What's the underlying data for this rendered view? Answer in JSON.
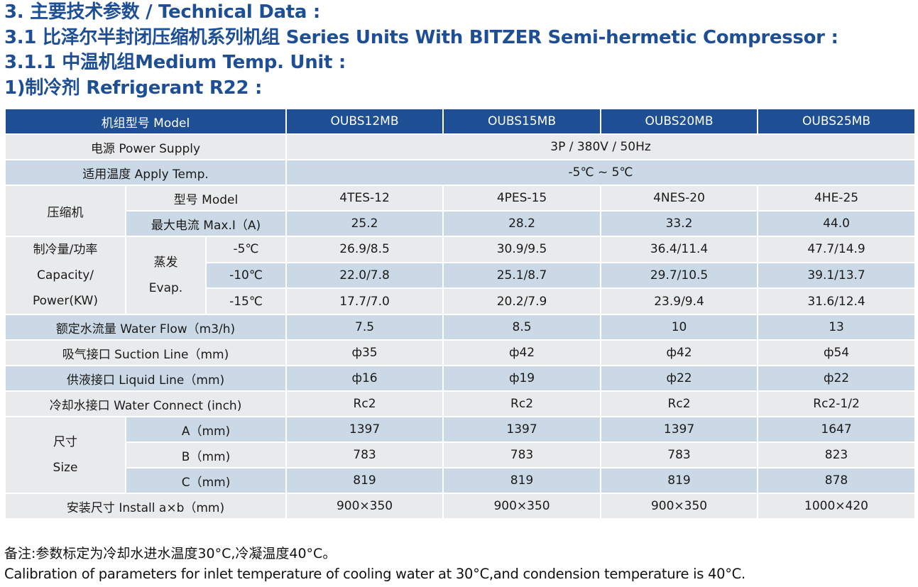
{
  "headings": [
    "3. 主要技术参数 / Technical Data :",
    "3.1 比泽尔半封闭压缩机系列机组 Series Units With BITZER Semi-hermetic Compressor :",
    "3.1.1 中温机组Medium Temp. Unit :",
    "1)制冷剂 Refrigerant  R22 :"
  ],
  "table": {
    "header": {
      "label": "机组型号 Model",
      "models": [
        "OUBS12MB",
        "OUBS15MB",
        "OUBS20MB",
        "OUBS25MB"
      ]
    },
    "power_supply": {
      "label": "电源 Power Supply",
      "value": "3P / 380V / 50Hz"
    },
    "apply_temp": {
      "label": "适用温度 Apply Temp.",
      "value": "-5℃ ~ 5℃"
    },
    "compressor": {
      "label": "压缩机",
      "model_label": "型号 Model",
      "models": [
        "4TES-12",
        "4PES-15",
        "4NES-20",
        "4HE-25"
      ],
      "current_label": "最大电流 Max.I（A)",
      "currents": [
        "25.2",
        "28.2",
        "33.2",
        "44.0"
      ]
    },
    "capacity": {
      "label_lines": [
        "制冷量/功率",
        "Capacity/",
        "Power(KW)"
      ],
      "evap_lines": [
        "蒸发",
        "Evap."
      ],
      "rows": [
        {
          "temp": "-5℃",
          "values": [
            "26.9/8.5",
            "30.9/9.5",
            "36.4/11.4",
            "47.7/14.9"
          ]
        },
        {
          "temp": "-10℃",
          "values": [
            "22.0/7.8",
            "25.1/8.7",
            "29.7/10.5",
            "39.1/13.7"
          ]
        },
        {
          "temp": "-15℃",
          "values": [
            "17.7/7.0",
            "20.2/7.9",
            "23.9/9.4",
            "31.6/12.4"
          ]
        }
      ]
    },
    "water_flow": {
      "label": "额定水流量 Water Flow（m3/h)",
      "values": [
        "7.5",
        "8.5",
        "10",
        "13"
      ]
    },
    "suction": {
      "label": "吸气接口 Suction Line（mm)",
      "values": [
        "ф35",
        "ф42",
        "ф42",
        "ф54"
      ]
    },
    "liquid": {
      "label": "供液接口 Liquid Line（mm)",
      "values": [
        "ф16",
        "ф19",
        "ф22",
        "ф22"
      ]
    },
    "water_connect": {
      "label": "冷却水接口 Water Connect (inch)",
      "values": [
        "Rc2",
        "Rc2",
        "Rc2",
        "Rc2-1/2"
      ]
    },
    "size": {
      "label_lines": [
        "尺寸",
        "Size"
      ],
      "rows": [
        {
          "dim": "A（mm)",
          "values": [
            "1397",
            "1397",
            "1397",
            "1647"
          ]
        },
        {
          "dim": "B（mm)",
          "values": [
            "783",
            "783",
            "783",
            "823"
          ]
        },
        {
          "dim": "C（mm)",
          "values": [
            "819",
            "819",
            "819",
            "878"
          ]
        }
      ]
    },
    "install": {
      "label": "安装尺寸 Install a×b（mm)",
      "values": [
        "900×350",
        "900×350",
        "900×350",
        "1000×420"
      ]
    }
  },
  "notes": {
    "cn": "备注:参数标定为冷却水进水温度30°C,冷凝温度40°C。",
    "en": "Calibration of parameters for inlet temperature of cooling water at 30°C,and condension temperature is 40°C."
  },
  "colors": {
    "heading": "#1e4f95",
    "header_bg": "#1e4f95",
    "row_gray": "#e9eaec",
    "row_blue": "#cbd9e6"
  }
}
